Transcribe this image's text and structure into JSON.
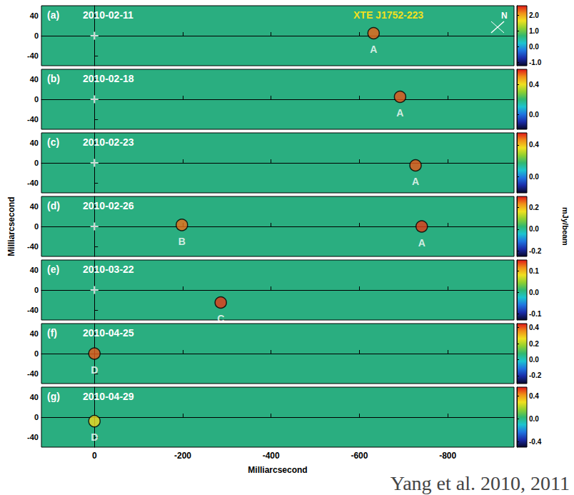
{
  "chart_data": {
    "type": "image",
    "title": "XTE J1752-223",
    "compass_label": "N",
    "citation": "Yang et al. 2010, 2011",
    "xlabel": "Milliarcsecond",
    "ylabel": "Milliarcsecond",
    "colorbar_label": "mJy/beam",
    "xlim": [
      120,
      -950
    ],
    "xticks": [
      0,
      -200,
      -400,
      -600,
      -800
    ],
    "ylim": [
      -60,
      60
    ],
    "yticks": [
      -40,
      0,
      40
    ],
    "panels": [
      {
        "label": "(a)",
        "date": "2010-02-11",
        "reference": [
          0,
          0
        ],
        "colorbar_lim": [
          -1.2,
          2.6
        ],
        "colorbar_ticks": [
          {
            "value": -1,
            "label": "-1.0"
          },
          {
            "value": 0,
            "label": "0.0"
          },
          {
            "value": 1,
            "label": "1.0"
          },
          {
            "value": 2,
            "label": "2.0"
          }
        ],
        "components": [
          {
            "name": "A",
            "x": -632,
            "y": 5,
            "flux": 2.3
          }
        ]
      },
      {
        "label": "(b)",
        "date": "2010-02-18",
        "reference": [
          0,
          0
        ],
        "colorbar_lim": [
          -0.2,
          0.6
        ],
        "colorbar_ticks": [
          {
            "value": 0,
            "label": "0.0"
          },
          0.4
        ],
        "components": [
          {
            "name": "A",
            "x": -692,
            "y": 5,
            "flux": 0.55
          }
        ]
      },
      {
        "label": "(c)",
        "date": "2010-02-23",
        "reference": [
          0,
          0
        ],
        "colorbar_lim": [
          -0.2,
          0.55
        ],
        "colorbar_ticks": [
          {
            "value": 0,
            "label": "0.0"
          },
          0.4
        ],
        "components": [
          {
            "name": "A",
            "x": -727,
            "y": -5,
            "flux": 0.5
          }
        ]
      },
      {
        "label": "(d)",
        "date": "2010-02-26",
        "reference": [
          0,
          0
        ],
        "colorbar_lim": [
          -0.25,
          0.3
        ],
        "colorbar_ticks": [
          -0.2,
          {
            "value": 0,
            "label": "0.0"
          },
          0.2
        ],
        "components": [
          {
            "name": "B",
            "x": -198,
            "y": 3,
            "flux": 0.25
          },
          {
            "name": "A",
            "x": -741,
            "y": 0,
            "flux": 0.28
          }
        ]
      },
      {
        "label": "(e)",
        "date": "2010-03-22",
        "reference": [
          0,
          0
        ],
        "colorbar_lim": [
          -0.13,
          0.15
        ],
        "colorbar_ticks": [
          -0.1,
          {
            "value": 0,
            "label": "0.0"
          },
          0.1
        ],
        "components": [
          {
            "name": "C",
            "x": -286,
            "y": -25,
            "flux": 0.14
          }
        ]
      },
      {
        "label": "(f)",
        "date": "2010-04-25",
        "colorbar_lim": [
          -0.3,
          0.45
        ],
        "colorbar_ticks": [
          -0.2,
          {
            "value": 0,
            "label": "0.0"
          },
          0.2,
          0.4
        ],
        "components": [
          {
            "name": "D",
            "x": 0,
            "y": 0,
            "flux": 0.4
          }
        ]
      },
      {
        "label": "(g)",
        "date": "2010-04-29",
        "colorbar_lim": [
          -0.5,
          0.55
        ],
        "colorbar_ticks": [
          -0.4,
          {
            "value": 0,
            "label": "0.0"
          },
          0.4
        ],
        "components": [
          {
            "name": "D",
            "x": 0,
            "y": -8,
            "flux": 0.3
          }
        ]
      }
    ]
  }
}
